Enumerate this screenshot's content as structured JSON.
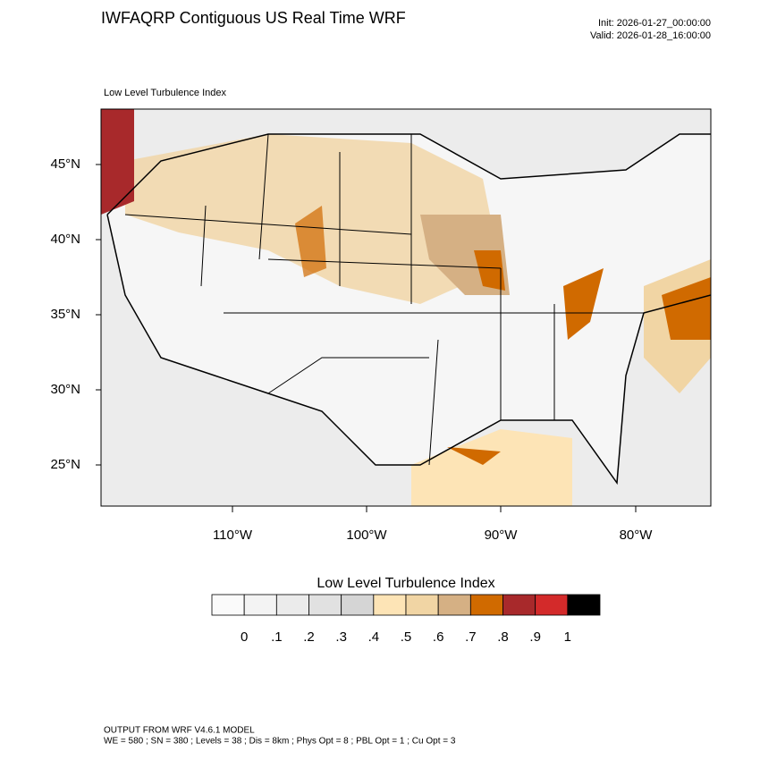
{
  "header": {
    "title": "IWFAQRP Contiguous US Real Time WRF",
    "init": "Init: 2026-01-27_00:00:00",
    "valid": "Valid: 2026-01-28_16:00:00"
  },
  "map": {
    "subtitle": "Low Level Turbulence Index",
    "lat_labels": [
      "45°N",
      "40°N",
      "35°N",
      "30°N",
      "25°N"
    ],
    "lon_labels": [
      "110°W",
      "100°W",
      "90°W",
      "80°W"
    ]
  },
  "colorbar": {
    "title": "Low Level Turbulence Index",
    "colors": [
      "#fafafa",
      "#f3f3f3",
      "#ebebeb",
      "#e1e1e1",
      "#d5d5d5",
      "#fde4b6",
      "#f1d5a4",
      "#d5b084",
      "#d06a00",
      "#a8292b",
      "#d32a2a",
      "#000000"
    ],
    "labels": [
      "0",
      ".1",
      ".2",
      ".3",
      ".4",
      ".5",
      ".6",
      ".7",
      ".8",
      ".9",
      "1"
    ]
  },
  "footer": {
    "line1": "OUTPUT FROM WRF V4.6.1 MODEL",
    "line2": "WE = 580 ; SN = 380 ; Levels = 38 ; Dis = 8km ; Phys Opt = 8 ; PBL Opt = 1 ; Cu Opt = 3"
  }
}
